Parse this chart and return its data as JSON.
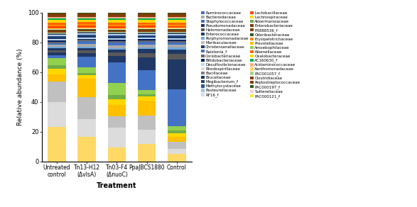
{
  "categories": [
    "Untreated\ncontrol",
    "Tn13-H12\n(ΔvlsA)",
    "Tn03-F4\n(ΔnuoC)",
    "PpaJBCS1880",
    "Control"
  ],
  "xlabel": "Treatment",
  "ylabel": "Relative abundance (%)",
  "legend_col1": [
    [
      "Ruminococcaceae",
      "#4472C4"
    ],
    [
      "Bacteroidaceae",
      "#AAAAAA"
    ],
    [
      "Staphylococcaceae",
      "#4472C4"
    ],
    [
      "Pseudomonadaceae",
      "#203864"
    ],
    [
      "Halomonadaceae",
      "#595959"
    ],
    [
      "Enterococcaceae",
      "#1F3864"
    ],
    [
      "Porphyromonadaceae",
      "#6FA8DC"
    ],
    [
      "Muribaculaceae",
      "#C0C0C0"
    ],
    [
      "Christensenellaceae",
      "#1C3A6E"
    ],
    [
      "Ralstonia_f",
      "#4472C4"
    ],
    [
      "Coriobacteriaceae",
      "#666666"
    ],
    [
      "Bifidobacteriaceae",
      "#002060"
    ],
    [
      "Desulfovibrionaceae",
      "#BDD7EE"
    ],
    [
      "Rhodospirillaceae",
      "#DCDCDC"
    ],
    [
      "Bacillaceae",
      "#7F7F7F"
    ],
    [
      "Brucellaceae",
      "#17375E"
    ],
    [
      "Mogibacterium_f",
      "#243F60"
    ],
    [
      "Methylocystaceae",
      "#2F5496"
    ],
    [
      "Pasteurellaceae",
      "#9DC3E6"
    ],
    [
      "RF16_f",
      "#D6DCE4"
    ]
  ],
  "legend_col2": [
    [
      "Lactobacillaceae",
      "#FF4500"
    ],
    [
      "Lachnospiraceae",
      "#FFD700"
    ],
    [
      "Akkermansiaceae",
      "#70AD47"
    ],
    [
      "Enterobacteriaceae",
      "#843C0C"
    ],
    [
      "FR888536_f",
      "#7B3F00"
    ],
    [
      "Odoribacteraceae",
      "#375623"
    ],
    [
      "Erysipelotrichaceae",
      "#FF8C00"
    ],
    [
      "Prevotellaceae",
      "#FFC000"
    ],
    [
      "Amoebophilaceae",
      "#92D050"
    ],
    [
      "Rikenellaceae",
      "#FF6600"
    ],
    [
      "Oxalobacteraceae",
      "#FFD700"
    ],
    [
      "AC160630_f",
      "#00B050"
    ],
    [
      "Acidaminococcaceae",
      "#F4B183"
    ],
    [
      "Xanthomonadaceae",
      "#FFD966"
    ],
    [
      "PAC001057_f",
      "#A9D18E"
    ],
    [
      "Clostridiaceae",
      "#843C0C"
    ],
    [
      "Peptostreptococcaceae",
      "#7B3F00"
    ],
    [
      "PAC000197_f",
      "#375623"
    ],
    [
      "Sutterellaceae",
      "#F4CCCC"
    ],
    [
      "PAC000121_f",
      "#FFE135"
    ]
  ],
  "stack_order": [
    "Xanthomonadaceae",
    "Rhodospirillaceae",
    "Muribaculaceae",
    "Prevotellaceae",
    "Lachnospiraceae",
    "Akkermansiaceae",
    "Amoebophilaceae",
    "Staphylococcaceae",
    "Pseudomonadaceae",
    "Halomonadaceae",
    "Enterococcaceae",
    "Porphyromonadaceae",
    "Bacteroidaceae",
    "Ruminococcaceae",
    "Ralstonia_f",
    "Coriobacteriaceae",
    "Bifidobacteriaceae",
    "Desulfovibrionaceae",
    "Christensenellaceae",
    "Mogibacterium_f",
    "Methylocystaceae",
    "Pasteurellaceae",
    "RF16_f",
    "Brucellaceae",
    "Bacillaceae",
    "PAC001057_f",
    "Clostridiaceae",
    "Peptostreptococcaceae",
    "PAC000197_f",
    "Sutterellaceae",
    "PAC000121_f",
    "Lactobacillaceae",
    "Erysipelotrichaceae",
    "Rikenellaceae",
    "Oxalobacteraceae",
    "AC160630_f",
    "Acidaminococcaceae",
    "Enterobacteriaceae",
    "FR888536_f",
    "Odoribacteraceae"
  ],
  "bar_values": {
    "Xanthomonadaceae": [
      25.0,
      19.0,
      10.0,
      13.0,
      5.5
    ],
    "Rhodospirillaceae": [
      18.0,
      13.0,
      15.0,
      11.0,
      4.0
    ],
    "Muribaculaceae": [
      14.5,
      17.0,
      8.0,
      10.5,
      5.0
    ],
    "Prevotellaceae": [
      5.5,
      14.0,
      8.5,
      11.0,
      3.5
    ],
    "Lachnospiraceae": [
      4.0,
      2.5,
      4.0,
      3.0,
      3.0
    ],
    "Akkermansiaceae": [
      2.5,
      2.0,
      3.0,
      2.0,
      2.0
    ],
    "Amoebophilaceae": [
      5.0,
      4.0,
      9.0,
      3.0,
      3.0
    ],
    "Staphylococcaceae": [
      2.0,
      8.0,
      15.0,
      15.0,
      27.0
    ],
    "Pseudomonadaceae": [
      2.0,
      3.0,
      4.5,
      9.5,
      22.0
    ],
    "Halomonadaceae": [
      1.5,
      2.0,
      2.5,
      3.0,
      4.5
    ],
    "Enterococcaceae": [
      1.5,
      2.0,
      2.5,
      3.0,
      3.0
    ],
    "Porphyromonadaceae": [
      1.0,
      1.0,
      1.0,
      1.5,
      1.5
    ],
    "Bacteroidaceae": [
      1.5,
      2.0,
      2.0,
      2.0,
      2.0
    ],
    "Ruminococcaceae": [
      1.5,
      2.0,
      2.0,
      2.0,
      2.0
    ],
    "Ralstonia_f": [
      0.0,
      0.0,
      0.0,
      0.0,
      0.0
    ],
    "Coriobacteriaceae": [
      1.0,
      1.0,
      1.0,
      1.0,
      1.0
    ],
    "Bifidobacteriaceae": [
      1.0,
      1.0,
      1.0,
      1.0,
      1.0
    ],
    "Desulfovibrionaceae": [
      1.0,
      1.0,
      1.0,
      1.0,
      1.0
    ],
    "Christensenellaceae": [
      1.0,
      1.0,
      1.0,
      1.0,
      1.0
    ],
    "Mogibacterium_f": [
      0.5,
      0.5,
      0.5,
      0.5,
      0.5
    ],
    "Methylocystaceae": [
      0.5,
      0.5,
      0.5,
      0.5,
      0.5
    ],
    "Pasteurellaceae": [
      0.5,
      0.5,
      0.5,
      0.5,
      0.5
    ],
    "RF16_f": [
      0.5,
      0.5,
      0.5,
      0.5,
      0.5
    ],
    "Brucellaceae": [
      0.5,
      0.5,
      0.5,
      0.5,
      0.5
    ],
    "Bacillaceae": [
      0.5,
      0.5,
      0.5,
      0.5,
      0.5
    ],
    "PAC001057_f": [
      0.5,
      0.5,
      0.5,
      0.5,
      0.5
    ],
    "Clostridiaceae": [
      1.0,
      1.0,
      1.0,
      1.0,
      1.0
    ],
    "Peptostreptococcaceae": [
      0.5,
      0.5,
      0.5,
      0.5,
      0.5
    ],
    "PAC000197_f": [
      0.5,
      0.5,
      0.5,
      0.5,
      0.5
    ],
    "Sutterellaceae": [
      0.5,
      0.5,
      0.5,
      0.5,
      0.5
    ],
    "PAC000121_f": [
      0.5,
      0.5,
      0.5,
      0.5,
      0.5
    ],
    "Lactobacillaceae": [
      1.5,
      1.5,
      1.5,
      1.5,
      1.5
    ],
    "Erysipelotrichaceae": [
      1.0,
      1.0,
      1.0,
      1.0,
      1.0
    ],
    "Rikenellaceae": [
      1.5,
      1.5,
      1.5,
      1.5,
      1.5
    ],
    "Oxalobacteraceae": [
      2.0,
      2.0,
      2.0,
      2.0,
      2.0
    ],
    "AC160630_f": [
      1.0,
      1.0,
      1.0,
      1.0,
      1.0
    ],
    "Acidaminococcaceae": [
      1.0,
      1.0,
      1.0,
      1.0,
      1.0
    ],
    "Enterobacteriaceae": [
      1.5,
      1.5,
      1.5,
      1.5,
      1.5
    ],
    "FR888536_f": [
      1.0,
      1.0,
      1.0,
      1.0,
      1.0
    ],
    "Odoribacteraceae": [
      1.0,
      1.0,
      1.0,
      1.0,
      1.0
    ]
  }
}
